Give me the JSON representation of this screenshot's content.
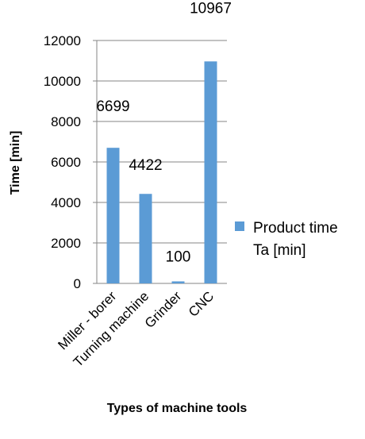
{
  "chart_data": {
    "type": "bar",
    "categories": [
      "Miller - borer",
      "Turning machine",
      "Grinder",
      "CNC"
    ],
    "series": [
      {
        "name": "Product time Ta [min]",
        "values": [
          6699,
          4422,
          100,
          10967
        ]
      }
    ],
    "data_labels": [
      "6699",
      "4422",
      "100",
      "10967"
    ],
    "xlabel": "Types of machine tools",
    "ylabel": "Time [min]",
    "ylim": [
      0,
      12000
    ],
    "yticks": [
      "0",
      "2000",
      "4000",
      "6000",
      "8000",
      "10000",
      "12000"
    ],
    "grid": true,
    "legend_position": "right",
    "legend_lines": [
      "Product time",
      "Ta [min]"
    ],
    "colors": {
      "bar": "#5b9bd5",
      "grid": "#868686",
      "axis": "#868686"
    }
  }
}
